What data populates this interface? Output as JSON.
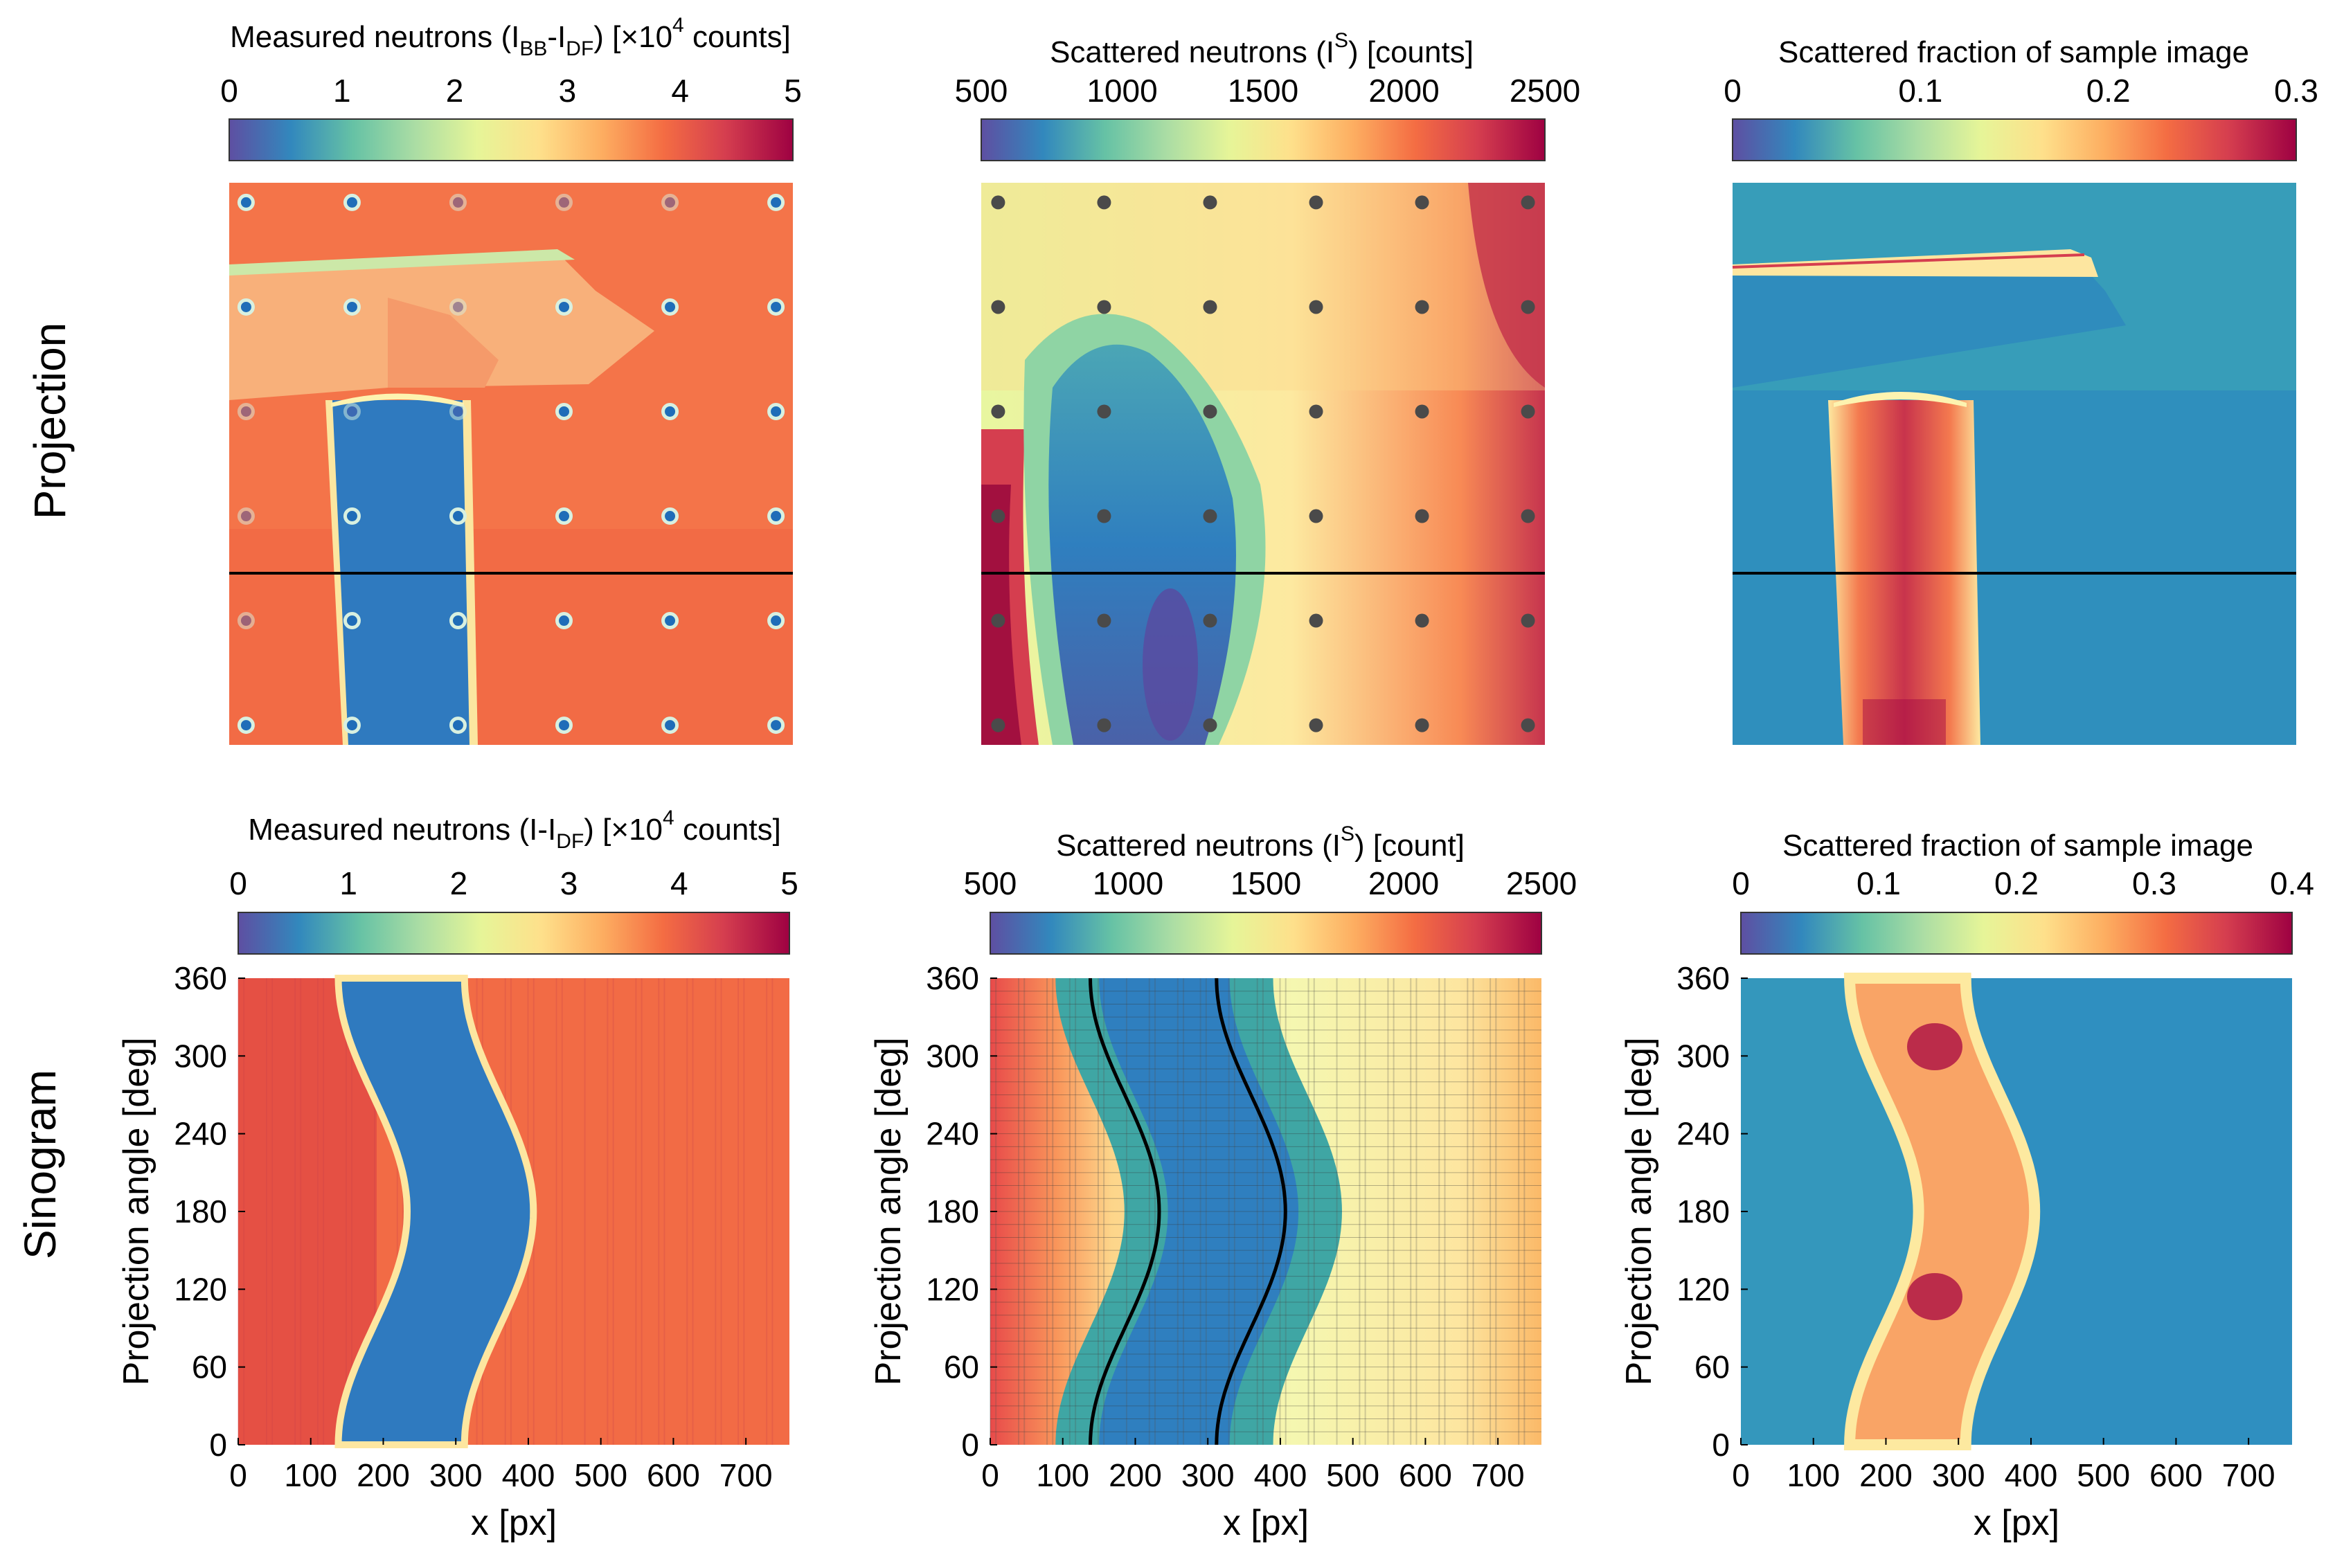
{
  "rows": {
    "projection": "Projection",
    "sinogram": "Sinogram"
  },
  "colorbar_colors": [
    "#5e4fa2",
    "#3288bd",
    "#66c2a5",
    "#abdda4",
    "#e6f598",
    "#fee08b",
    "#fdae61",
    "#f46d43",
    "#d53e4f",
    "#9e0142"
  ],
  "panels": {
    "p1": {
      "title": {
        "main": "Measured neutrons (I",
        "s1": "BB",
        "mid": "-I",
        "s2": "DF",
        "tail": ") [×10",
        "sup": "4",
        "end": " counts]"
      },
      "ticks": [
        "0",
        "1",
        "2",
        "3",
        "4",
        "5"
      ]
    },
    "p2": {
      "title": {
        "main": "Scattered neutrons (I",
        "sup": "S",
        "end": ") [counts]"
      },
      "ticks": [
        "500",
        "1000",
        "1500",
        "2000",
        "2500"
      ]
    },
    "p3": {
      "title": "Scattered fraction of sample image",
      "ticks": [
        "0",
        "0.1",
        "0.2",
        "0.3"
      ]
    },
    "s1": {
      "title": {
        "main": "Measured neutrons (I-I",
        "s1": "DF",
        "tail": ") [×10",
        "sup": "4",
        "end": " counts]"
      },
      "ticks": [
        "0",
        "1",
        "2",
        "3",
        "4",
        "5"
      ]
    },
    "s2": {
      "title": {
        "main": "Scattered neutrons (I",
        "sup": "S",
        "end": ") [count]"
      },
      "ticks": [
        "500",
        "1000",
        "1500",
        "2000",
        "2500"
      ]
    },
    "s3": {
      "title": "Scattered fraction of sample image",
      "ticks": [
        "0",
        "0.1",
        "0.2",
        "0.3",
        "0.4"
      ]
    }
  },
  "sinogram_axes": {
    "xlabel": "x [px]",
    "ylabel": "Projection angle [deg]",
    "xticks": [
      "0",
      "100",
      "200",
      "300",
      "400",
      "500",
      "600",
      "700"
    ],
    "yticks": [
      "0",
      "60",
      "120",
      "180",
      "240",
      "300",
      "360"
    ]
  }
}
